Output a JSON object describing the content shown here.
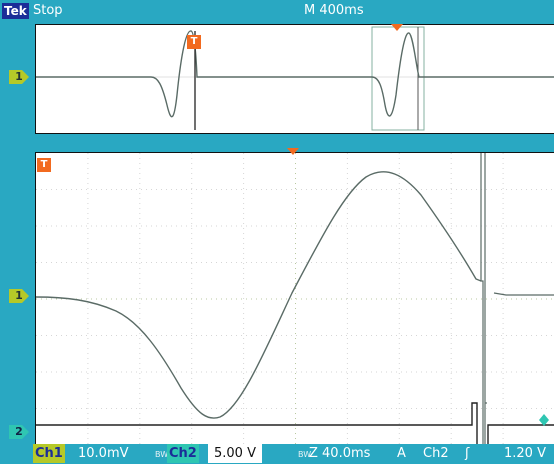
{
  "header": {
    "brand": "Tek",
    "run_state": "Stop",
    "timebase": "M 400ms"
  },
  "overview": {
    "ch1_marker": "1",
    "trigger_marker": "T"
  },
  "main": {
    "ch1_marker": "1",
    "ch2_marker": "2",
    "trigger_marker": "T"
  },
  "status_bar": {
    "ch1_label": "Ch1",
    "ch1_scale": "10.0mV",
    "bw1": "BW",
    "ch2_label": "Ch2",
    "ch2_scale": "5.00 V",
    "bw2": "BW",
    "zoom": "Z 40.0ms",
    "trigger_mode": "A",
    "trigger_source": "Ch2",
    "trigger_slope": "ʃ",
    "trigger_level": "1.20 V"
  },
  "colors": {
    "background": "#29a8c2",
    "ch1": "#b5c928",
    "ch2": "#2fc6b2",
    "trigger": "#f26a1f",
    "trace": "#5a6b66"
  }
}
